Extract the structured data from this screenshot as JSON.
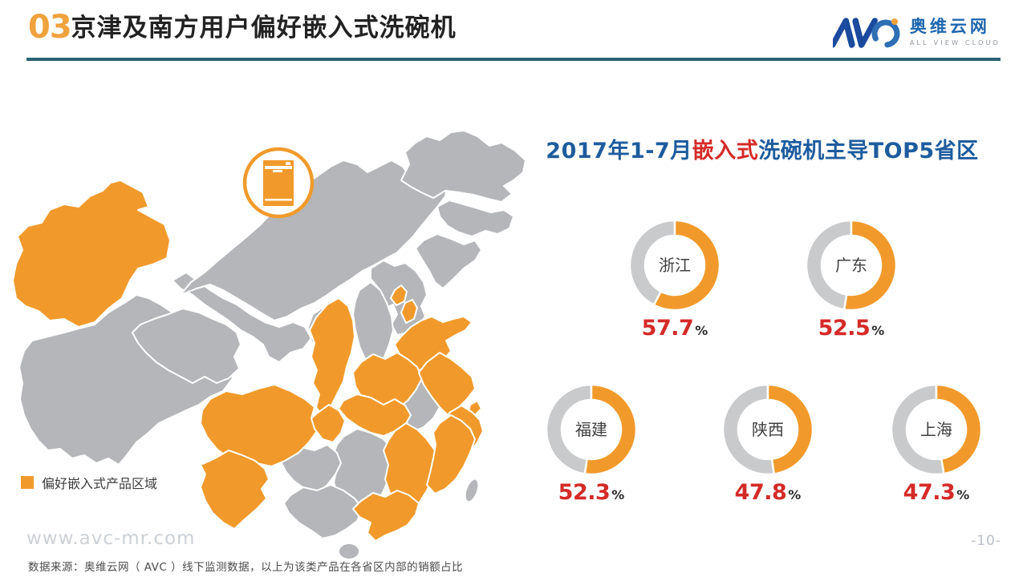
{
  "header": {
    "number": "03",
    "title": "京津及南方用户偏好嵌入式洗碗机"
  },
  "logo": {
    "brand": "AVC",
    "name_cn": "奥维云网",
    "tagline": "ALL VIEW CLOUD"
  },
  "map": {
    "legend_label": "偏好嵌入式产品区域",
    "icon": "dishwasher-icon",
    "highlighted_color": "#F19A2B",
    "base_color": "#B4B6B9",
    "highlighted_provinces": [
      "新疆",
      "北京",
      "天津",
      "山东",
      "江苏",
      "上海",
      "浙江",
      "福建",
      "广东",
      "江西",
      "湖北",
      "河南",
      "陕西",
      "四川",
      "重庆",
      "云南"
    ]
  },
  "chart_data": {
    "type": "pie",
    "subtype": "donut",
    "title_prefix": "2017年1-7月",
    "title_highlight": "嵌入式",
    "title_suffix": "洗碗机主导TOP5省区",
    "unit": "%",
    "value_domain": [
      0,
      100
    ],
    "series": [
      {
        "name": "浙江",
        "value": 57.7
      },
      {
        "name": "广东",
        "value": 52.5
      },
      {
        "name": "福建",
        "value": 52.3
      },
      {
        "name": "陕西",
        "value": 47.8
      },
      {
        "name": "上海",
        "value": 47.3
      }
    ],
    "colors": {
      "filled": "#F19A2B",
      "rest": "#C9CACC",
      "label": "#3F3F3F",
      "value": "#D42B28"
    }
  },
  "footer": {
    "watermark": "www.avc-mr.com",
    "source": "数据来源：奥维云网（ AVC ）线下监测数据，以上为该类产品在各省区内部的销额占比",
    "page": "-10-"
  }
}
